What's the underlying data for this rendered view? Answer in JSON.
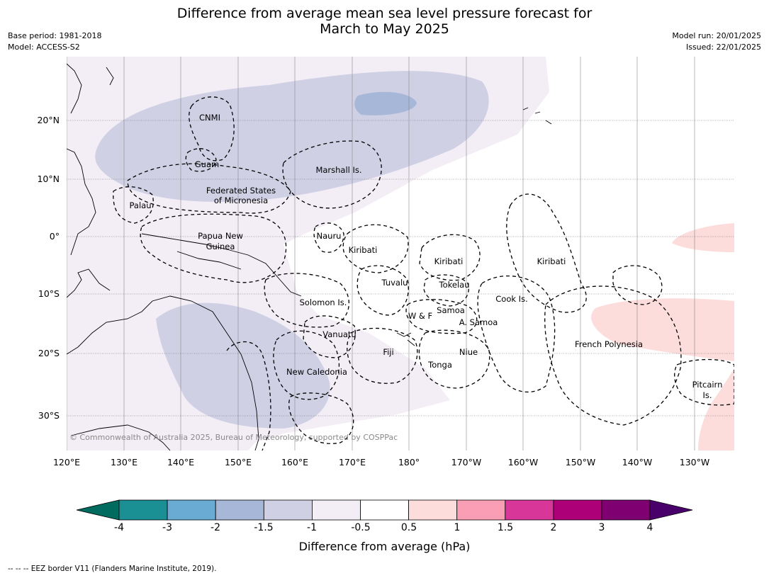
{
  "header": {
    "title_line1": "Difference from average mean sea level pressure forecast for",
    "title_line2": "March to May 2025",
    "base_period": "Base period: 1981-2018",
    "model": "Model: ACCESS-S2",
    "model_run": "Model run: 20/01/2025",
    "issued": "Issued: 22/01/2025"
  },
  "map": {
    "lon_labels": [
      "120°E",
      "130°E",
      "140°E",
      "150°E",
      "160°E",
      "170°E",
      "180°",
      "170°W",
      "160°W",
      "150°W",
      "140°W",
      "130°W"
    ],
    "lat_labels": [
      "20°N",
      "10°N",
      "0°",
      "10°S",
      "20°S",
      "30°S"
    ],
    "regions": [
      "CNMI",
      "Guam",
      "Marshall Is.",
      "Federated States",
      "of Micronesia",
      "Palau",
      "Papua New",
      "Guinea",
      "Nauru",
      "Kiribati",
      "Kiribati",
      "Kiribati",
      "Tuvalu",
      "Tokelau",
      "Cook Is.",
      "Solomon Is.",
      "W & F",
      "Samoa",
      "A. Samoa",
      "Vanuatu",
      "Fiji",
      "Niue",
      "French Polynesia",
      "New Caledonia",
      "Tonga",
      "Pitcairn",
      "Is."
    ],
    "copyright": "© Commonwealth of Australia 2025, Bureau of Meteorology, supported by COSPPac"
  },
  "colorbar": {
    "ticks": [
      "-4",
      "-3",
      "-2",
      "-1.5",
      "-1",
      "-0.5",
      "0.5",
      "1",
      "1.5",
      "2",
      "3",
      "4"
    ],
    "colors": [
      "#1a8f94",
      "#6aabd4",
      "#a6b7d7",
      "#d0d0e5",
      "#f3edf6",
      "#ffffff",
      "#fddcdc",
      "#f99eb5",
      "#d9369a",
      "#ad0078",
      "#7e0071"
    ],
    "under_color": "#006b5e",
    "over_color": "#4a006b",
    "label": "Difference from average (hPa)"
  },
  "legend": {
    "eez_note": "--  --  -- EEZ border V11 (Flanders Marine Institute, 2019)."
  }
}
